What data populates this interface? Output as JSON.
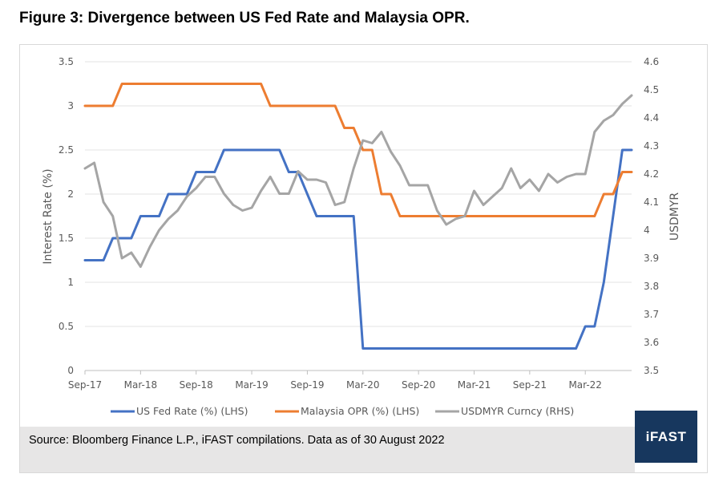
{
  "figure_title": "Figure 3: Divergence between US Fed Rate and Malaysia OPR.",
  "source": "Source: Bloomberg Finance L.P., iFAST compilations. Data as of 30 August 2022",
  "logo_text": "iFAST",
  "colors": {
    "fed": "#4472c4",
    "opr": "#ed7d31",
    "usdmyr": "#a5a5a5"
  },
  "chart_data": {
    "type": "line",
    "title": "",
    "ylabel": "Interest Rate (%)",
    "y2label": "USDMYR",
    "ylim": [
      0,
      3.5
    ],
    "y2lim": [
      3.5,
      4.6
    ],
    "yticks": [
      "0",
      "0.5",
      "1",
      "1.5",
      "2",
      "2.5",
      "3",
      "3.5"
    ],
    "y2ticks": [
      "3.5",
      "3.6",
      "3.7",
      "3.8",
      "3.9",
      "4",
      "4.1",
      "4.2",
      "4.3",
      "4.4",
      "4.5",
      "4.6"
    ],
    "xticks": [
      "Sep-17",
      "Mar-18",
      "Sep-18",
      "Mar-19",
      "Sep-19",
      "Mar-20",
      "Sep-20",
      "Mar-21",
      "Sep-21",
      "Mar-22"
    ],
    "xlim": [
      "2017-09",
      "2022-08"
    ],
    "grid": "horizontal",
    "legend_position": "bottom",
    "series": [
      {
        "name": "US Fed Rate (%) (LHS)",
        "axis": "left",
        "x": [
          "2017-09",
          "2017-11",
          "2017-12",
          "2018-02",
          "2018-03",
          "2018-05",
          "2018-06",
          "2018-08",
          "2018-09",
          "2018-11",
          "2018-12",
          "2019-06",
          "2019-07",
          "2019-08",
          "2019-09",
          "2019-10",
          "2019-12",
          "2020-02",
          "2020-03",
          "2020-12",
          "2021-06",
          "2022-02",
          "2022-03",
          "2022-04",
          "2022-05",
          "2022-06",
          "2022-07",
          "2022-08"
        ],
        "values": [
          1.25,
          1.25,
          1.5,
          1.5,
          1.75,
          1.75,
          2.0,
          2.0,
          2.25,
          2.25,
          2.5,
          2.5,
          2.25,
          2.25,
          2.0,
          1.75,
          1.75,
          1.75,
          0.25,
          0.25,
          0.25,
          0.25,
          0.5,
          0.5,
          1.0,
          1.75,
          2.5,
          2.5
        ]
      },
      {
        "name": "Malaysia OPR (%) (LHS)",
        "axis": "left",
        "x": [
          "2017-09",
          "2017-12",
          "2018-01",
          "2018-02",
          "2019-04",
          "2019-05",
          "2019-12",
          "2020-01",
          "2020-02",
          "2020-03",
          "2020-04",
          "2020-05",
          "2020-06",
          "2020-07",
          "2022-04",
          "2022-05",
          "2022-06",
          "2022-07",
          "2022-08"
        ],
        "values": [
          3.0,
          3.0,
          3.25,
          3.25,
          3.25,
          3.0,
          3.0,
          2.75,
          2.75,
          2.5,
          2.5,
          2.0,
          2.0,
          1.75,
          1.75,
          2.0,
          2.0,
          2.25,
          2.25
        ]
      },
      {
        "name": "USDMYR Curncy (RHS)",
        "axis": "right",
        "x": [
          "2017-09",
          "2017-10",
          "2017-11",
          "2017-12",
          "2018-01",
          "2018-02",
          "2018-03",
          "2018-04",
          "2018-05",
          "2018-06",
          "2018-07",
          "2018-08",
          "2018-09",
          "2018-10",
          "2018-11",
          "2018-12",
          "2019-01",
          "2019-02",
          "2019-03",
          "2019-04",
          "2019-05",
          "2019-06",
          "2019-07",
          "2019-08",
          "2019-09",
          "2019-10",
          "2019-11",
          "2019-12",
          "2020-01",
          "2020-02",
          "2020-03",
          "2020-04",
          "2020-05",
          "2020-06",
          "2020-07",
          "2020-08",
          "2020-09",
          "2020-10",
          "2020-11",
          "2020-12",
          "2021-01",
          "2021-02",
          "2021-03",
          "2021-04",
          "2021-05",
          "2021-06",
          "2021-07",
          "2021-08",
          "2021-09",
          "2021-10",
          "2021-11",
          "2021-12",
          "2022-01",
          "2022-02",
          "2022-03",
          "2022-04",
          "2022-05",
          "2022-06",
          "2022-07",
          "2022-08"
        ],
        "values": [
          4.22,
          4.24,
          4.1,
          4.05,
          3.9,
          3.92,
          3.87,
          3.94,
          4.0,
          4.04,
          4.07,
          4.12,
          4.15,
          4.19,
          4.19,
          4.13,
          4.09,
          4.07,
          4.08,
          4.14,
          4.19,
          4.13,
          4.13,
          4.21,
          4.18,
          4.18,
          4.17,
          4.09,
          4.1,
          4.22,
          4.32,
          4.31,
          4.35,
          4.28,
          4.23,
          4.16,
          4.16,
          4.16,
          4.07,
          4.02,
          4.04,
          4.05,
          4.14,
          4.09,
          4.12,
          4.15,
          4.22,
          4.15,
          4.18,
          4.14,
          4.2,
          4.17,
          4.19,
          4.2,
          4.2,
          4.35,
          4.39,
          4.41,
          4.45,
          4.48
        ]
      }
    ]
  }
}
